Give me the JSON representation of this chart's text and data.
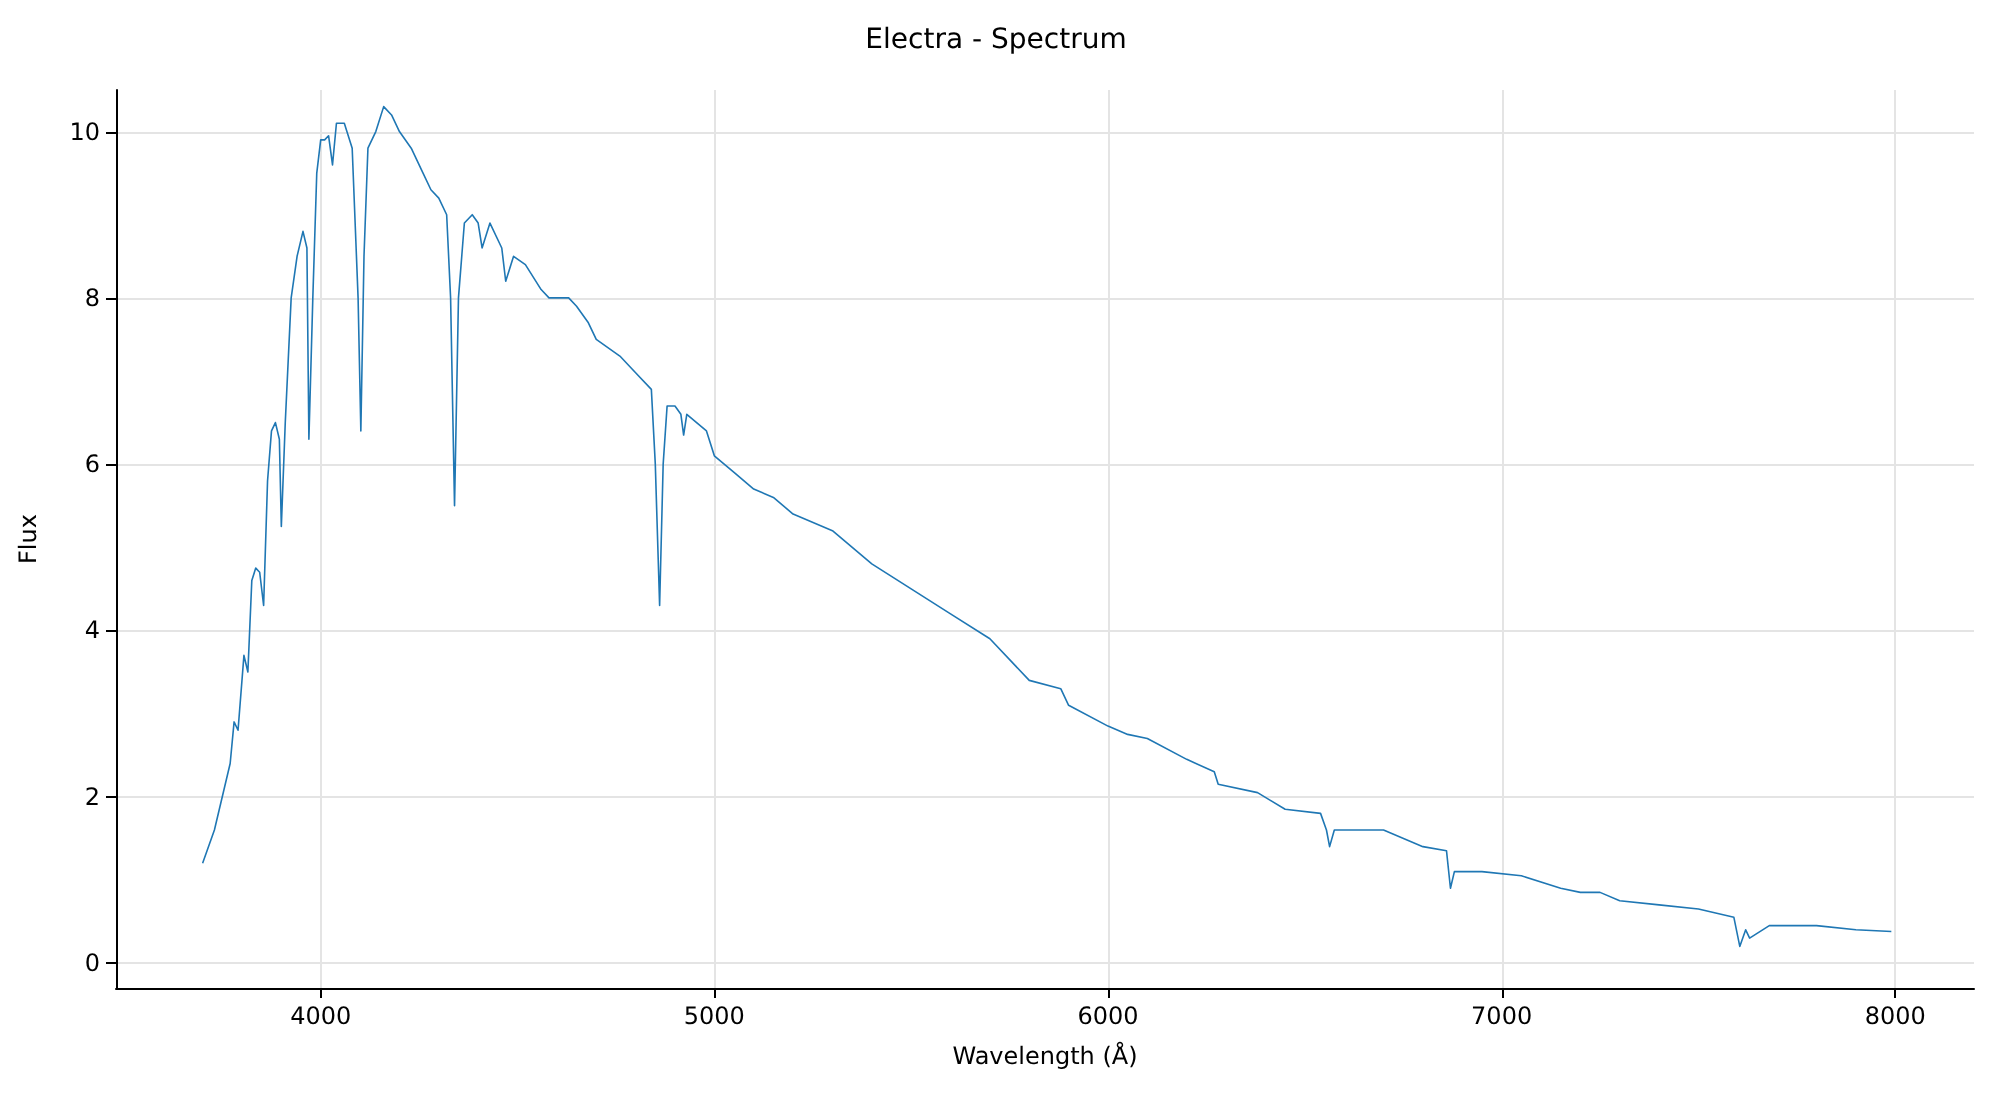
{
  "chart_data": {
    "type": "line",
    "title": "Electra - Spectrum",
    "xlabel": "Wavelength (Å)",
    "ylabel": "Flux",
    "x": [
      3700,
      3730,
      3750,
      3770,
      3780,
      3790,
      3800,
      3805,
      3815,
      3825,
      3835,
      3845,
      3855,
      3865,
      3875,
      3885,
      3895,
      3900,
      3910,
      3925,
      3940,
      3955,
      3965,
      3970,
      3980,
      3990,
      4000,
      4010,
      4020,
      4030,
      4040,
      4060,
      4080,
      4095,
      4102,
      4110,
      4120,
      4140,
      4160,
      4180,
      4200,
      4230,
      4260,
      4280,
      4300,
      4320,
      4330,
      4340,
      4350,
      4365,
      4385,
      4400,
      4410,
      4430,
      4460,
      4470,
      4490,
      4520,
      4560,
      4580,
      4630,
      4650,
      4680,
      4700,
      4760,
      4800,
      4840,
      4850,
      4861,
      4870,
      4880,
      4900,
      4915,
      4922,
      4930,
      4980,
      5000,
      5050,
      5100,
      5150,
      5200,
      5300,
      5400,
      5500,
      5600,
      5700,
      5800,
      5880,
      5900,
      6000,
      6050,
      6100,
      6200,
      6270,
      6280,
      6380,
      6450,
      6540,
      6555,
      6563,
      6575,
      6700,
      6800,
      6860,
      6870,
      6880,
      6950,
      7050,
      7150,
      7200,
      7250,
      7300,
      7400,
      7500,
      7590,
      7605,
      7620,
      7630,
      7680,
      7800,
      7900,
      7990
    ],
    "series": [
      {
        "color": "#1f77b4",
        "values": [
          1.2,
          1.6,
          2.0,
          2.4,
          2.9,
          2.8,
          3.4,
          3.7,
          3.5,
          4.6,
          4.75,
          4.7,
          4.3,
          5.8,
          6.4,
          6.5,
          6.3,
          5.25,
          6.5,
          8.0,
          8.5,
          8.8,
          8.6,
          6.3,
          8.0,
          9.5,
          9.9,
          9.9,
          9.95,
          9.6,
          10.1,
          10.1,
          9.8,
          8.0,
          6.4,
          8.5,
          9.8,
          10.0,
          10.3,
          10.2,
          10.0,
          9.8,
          9.5,
          9.3,
          9.2,
          9.0,
          8.0,
          5.5,
          8.0,
          8.9,
          9.0,
          8.9,
          8.6,
          8.9,
          8.6,
          8.2,
          8.5,
          8.4,
          8.1,
          8.0,
          8.0,
          7.9,
          7.7,
          7.5,
          7.3,
          7.1,
          6.9,
          6.0,
          4.3,
          6.0,
          6.7,
          6.7,
          6.6,
          6.35,
          6.6,
          6.4,
          6.1,
          5.9,
          5.7,
          5.6,
          5.4,
          5.2,
          4.8,
          4.5,
          4.2,
          3.9,
          3.4,
          3.3,
          3.1,
          2.85,
          2.75,
          2.7,
          2.45,
          2.3,
          2.15,
          2.05,
          1.85,
          1.8,
          1.6,
          1.4,
          1.6,
          1.6,
          1.4,
          1.35,
          0.9,
          1.1,
          1.1,
          1.05,
          0.9,
          0.85,
          0.85,
          0.75,
          0.7,
          0.65,
          0.55,
          0.2,
          0.4,
          0.3,
          0.45,
          0.45,
          0.4,
          0.38
        ]
      }
    ],
    "xlim": [
      3480,
      8200
    ],
    "xticks": [
      4000,
      5000,
      6000,
      7000,
      8000
    ],
    "ylim": [
      -0.3,
      10.5
    ],
    "yticks": [
      0,
      2,
      4,
      6,
      8,
      10
    ],
    "grid": true,
    "marker": "none",
    "line_style": "solid"
  }
}
